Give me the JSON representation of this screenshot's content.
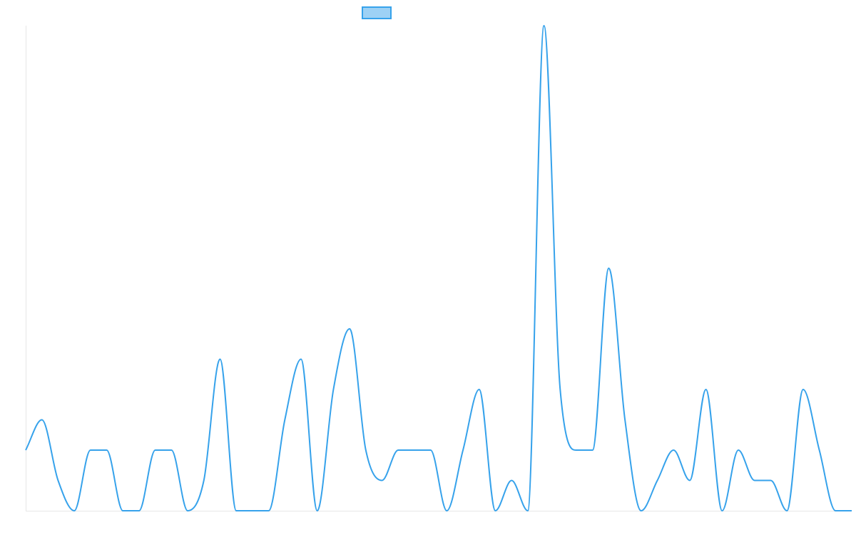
{
  "colors": {
    "line": "#36a2eb",
    "legend_fill": "#9dd1f5",
    "axis": "#e6e6e6"
  },
  "chart_data": {
    "type": "line",
    "title": "",
    "xlabel": "",
    "ylabel": "",
    "grid": false,
    "legend": {
      "placement": "top-center",
      "entries": [
        ""
      ]
    },
    "ylim": [
      0,
      16
    ],
    "x": [
      0,
      1,
      2,
      3,
      4,
      5,
      6,
      7,
      8,
      9,
      10,
      11,
      12,
      13,
      14,
      15,
      16,
      17,
      18,
      19,
      20,
      21,
      22,
      23,
      24,
      25,
      26,
      27,
      28,
      29,
      30,
      31,
      32,
      33,
      34,
      35,
      36,
      37,
      38,
      39,
      40,
      41,
      42,
      43,
      44,
      45,
      46,
      47,
      48,
      49,
      50,
      51
    ],
    "series": [
      {
        "name": "",
        "values": [
          2,
          3,
          1,
          0,
          2,
          2,
          0,
          0,
          2,
          2,
          0,
          1,
          5,
          0,
          0,
          0,
          3,
          5,
          0,
          4,
          6,
          2,
          1,
          2,
          2,
          2,
          0,
          2,
          4,
          0,
          1,
          0,
          16,
          4,
          2,
          2,
          8,
          3,
          0,
          1,
          2,
          1,
          4,
          0,
          2,
          1,
          1,
          0,
          4,
          2,
          0,
          0
        ]
      }
    ]
  }
}
